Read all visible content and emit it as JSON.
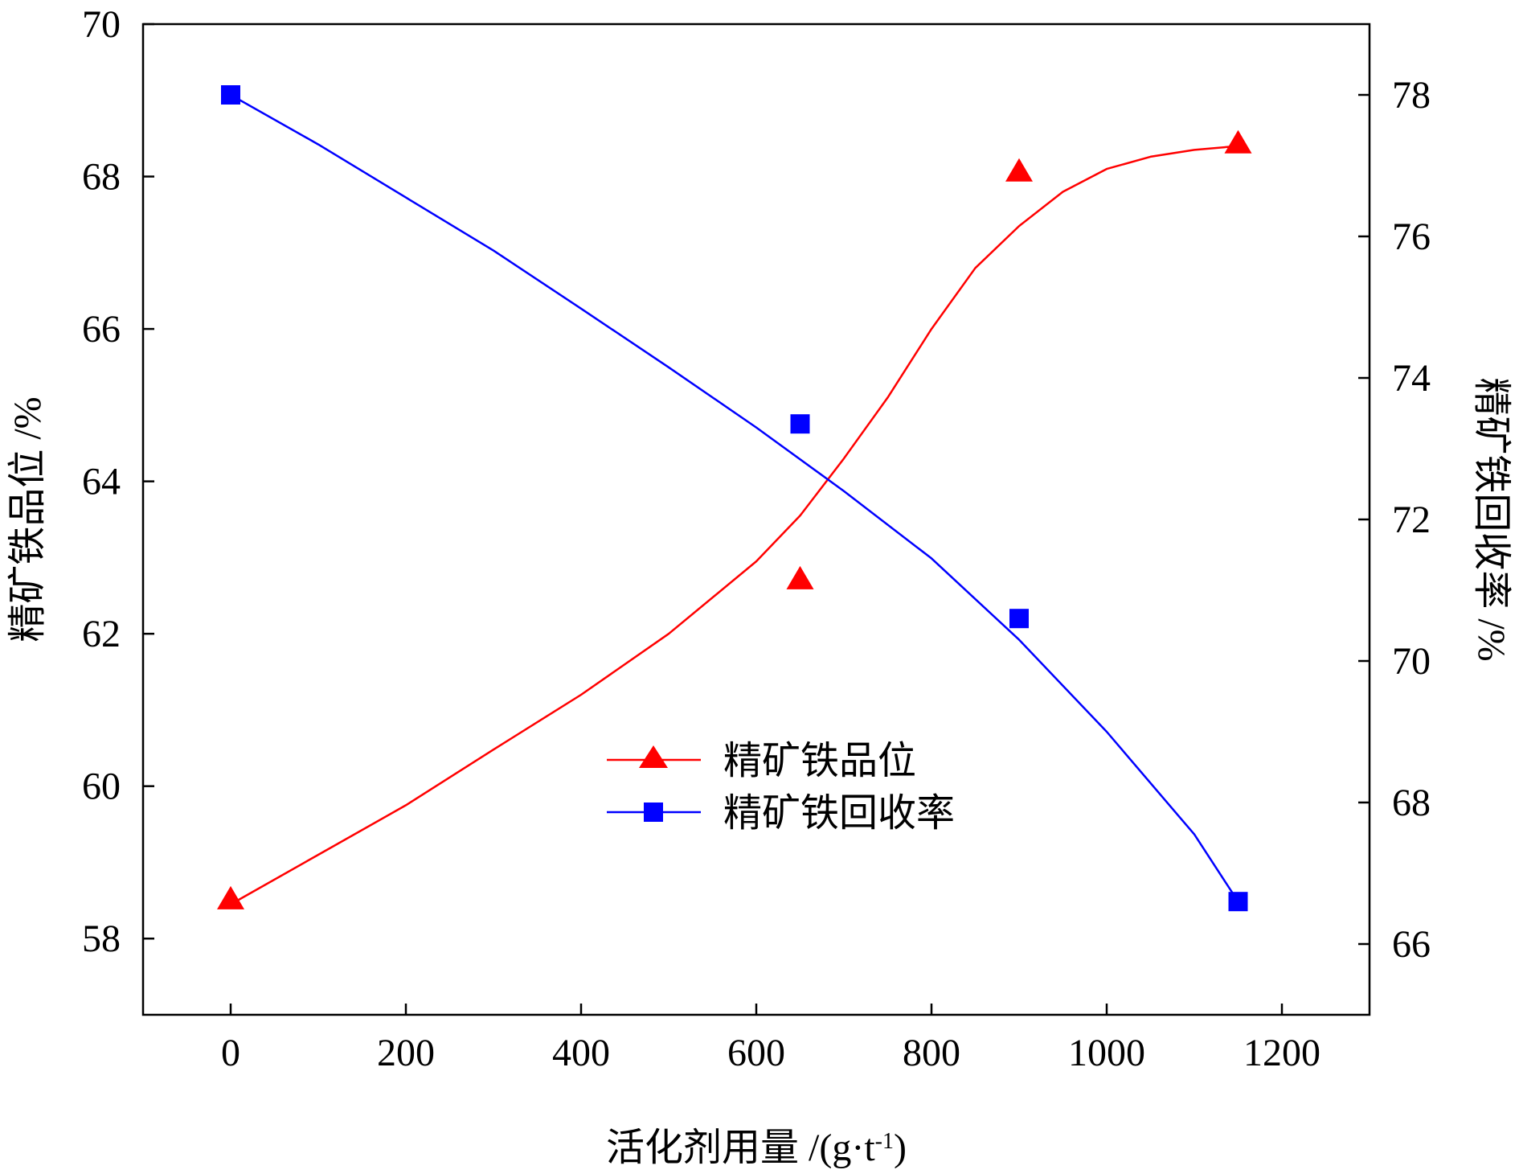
{
  "chart_data": {
    "type": "line",
    "xlabel": "活化剂用量 /(g·t",
    "xlabel_sup": "-1",
    "xlabel_close": ")",
    "ylabel_left": "精矿铁品位 /%",
    "ylabel_right": "精矿铁回收率 /%",
    "x_ticks": [
      0,
      200,
      400,
      600,
      800,
      1000,
      1200
    ],
    "xlim": [
      -100,
      1300
    ],
    "y_left_ticks": [
      58,
      60,
      62,
      64,
      66,
      68,
      70
    ],
    "y_left_lim": [
      57,
      70
    ],
    "y_right_ticks": [
      66,
      68,
      70,
      72,
      74,
      76,
      78
    ],
    "y_right_lim": [
      65,
      79
    ],
    "legend_position": "center",
    "grid": false,
    "series": [
      {
        "name": "精矿铁品位",
        "axis": "left",
        "color": "#ff0000",
        "marker": "triangle",
        "points": [
          {
            "x": 0,
            "y": 58.5
          },
          {
            "x": 650,
            "y": 62.7
          },
          {
            "x": 900,
            "y": 68.05
          },
          {
            "x": 1150,
            "y": 68.42
          }
        ],
        "fit_curve": [
          {
            "x": 0,
            "y": 58.45
          },
          {
            "x": 100,
            "y": 59.1
          },
          {
            "x": 200,
            "y": 59.75
          },
          {
            "x": 300,
            "y": 60.48
          },
          {
            "x": 400,
            "y": 61.2
          },
          {
            "x": 500,
            "y": 62.0
          },
          {
            "x": 600,
            "y": 62.95
          },
          {
            "x": 650,
            "y": 63.55
          },
          {
            "x": 700,
            "y": 64.3
          },
          {
            "x": 750,
            "y": 65.1
          },
          {
            "x": 800,
            "y": 66.0
          },
          {
            "x": 850,
            "y": 66.8
          },
          {
            "x": 900,
            "y": 67.35
          },
          {
            "x": 950,
            "y": 67.8
          },
          {
            "x": 1000,
            "y": 68.1
          },
          {
            "x": 1050,
            "y": 68.26
          },
          {
            "x": 1100,
            "y": 68.35
          },
          {
            "x": 1150,
            "y": 68.4
          }
        ]
      },
      {
        "name": "精矿铁回收率",
        "axis": "right",
        "color": "#0000ff",
        "marker": "square",
        "points": [
          {
            "x": 0,
            "y": 78.0
          },
          {
            "x": 650,
            "y": 73.35
          },
          {
            "x": 900,
            "y": 70.6
          },
          {
            "x": 1150,
            "y": 66.6
          }
        ],
        "fit_curve": [
          {
            "x": 0,
            "y": 78.0
          },
          {
            "x": 100,
            "y": 77.3
          },
          {
            "x": 200,
            "y": 76.55
          },
          {
            "x": 300,
            "y": 75.8
          },
          {
            "x": 400,
            "y": 74.98
          },
          {
            "x": 500,
            "y": 74.15
          },
          {
            "x": 600,
            "y": 73.3
          },
          {
            "x": 700,
            "y": 72.4
          },
          {
            "x": 800,
            "y": 71.45
          },
          {
            "x": 900,
            "y": 70.3
          },
          {
            "x": 1000,
            "y": 69.0
          },
          {
            "x": 1100,
            "y": 67.55
          },
          {
            "x": 1150,
            "y": 66.6
          }
        ]
      }
    ]
  }
}
